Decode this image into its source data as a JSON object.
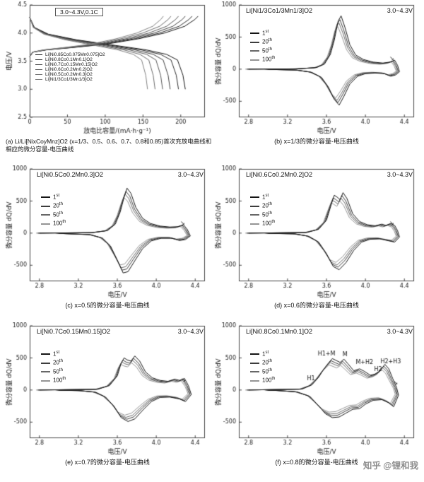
{
  "watermark": "知乎 @锂和我",
  "chart_data": [
    {
      "id": "a",
      "type": "line",
      "annotation_box": "3.0~4.3V,0.1C",
      "caption": "(a) Li/Li[NixCoyMnz]O2 (x=1/3、0.5、0.6、0.7、0.8和0.85)首次充放电曲线和相应的微分容量-电压曲线",
      "xlabel": "放电比容量/(mA·h·g⁻¹)",
      "ylabel": "电压/V",
      "xlim": [
        0,
        232
      ],
      "ylim": [
        2.5,
        4.5
      ],
      "xticks": [
        "0",
        "50",
        "100",
        "150",
        "200"
      ],
      "yticks": [
        "2.5",
        "3.0",
        "3.5",
        "4.0",
        "4.5"
      ],
      "legend_position": "inside-left",
      "grid": false,
      "charge_shape": [
        [
          0,
          3.58
        ],
        [
          0.02,
          3.66
        ],
        [
          0.1,
          3.7
        ],
        [
          0.25,
          3.74
        ],
        [
          0.45,
          3.8
        ],
        [
          0.65,
          3.9
        ],
        [
          0.8,
          4.0
        ],
        [
          0.92,
          4.12
        ],
        [
          0.98,
          4.24
        ],
        [
          1,
          4.3
        ]
      ],
      "discharge_shape": [
        [
          0,
          4.28
        ],
        [
          0.03,
          4.1
        ],
        [
          0.12,
          3.98
        ],
        [
          0.3,
          3.88
        ],
        [
          0.55,
          3.78
        ],
        [
          0.75,
          3.7
        ],
        [
          0.88,
          3.62
        ],
        [
          0.95,
          3.52
        ],
        [
          0.985,
          3.25
        ],
        [
          1,
          3.0
        ]
      ],
      "series": [
        {
          "name": "Li[Ni0.85Co0.075Mn0.075]O2",
          "charge_capacity": 223,
          "discharge_capacity": 206,
          "color": "#141414"
        },
        {
          "name": "Li[Ni0.8Co0.1Mn0.1]O2",
          "charge_capacity": 215,
          "discharge_capacity": 197,
          "color": "#2a2a2a"
        },
        {
          "name": "Li[Ni0.7Co0.15Mn0.15]O2",
          "charge_capacity": 206,
          "discharge_capacity": 186,
          "color": "#3f3f3f"
        },
        {
          "name": "Li[Ni0.6Co0.2Mn0.2]O2",
          "charge_capacity": 197,
          "discharge_capacity": 176,
          "color": "#555555"
        },
        {
          "name": "Li[Ni0.5Co0.2Mn0.3]O2",
          "charge_capacity": 187,
          "discharge_capacity": 166,
          "color": "#6a6a6a"
        },
        {
          "name": "Li[Ni1/3Co1/3Mn1/3]O2",
          "charge_capacity": 177,
          "discharge_capacity": 156,
          "color": "#808080"
        }
      ],
      "annotations": []
    },
    {
      "id": "b",
      "type": "line",
      "title": "Li[Ni1/3Co1/3Mn1/3]O2",
      "range_label": "3.0~4.3V",
      "caption": "(b) x=1/3的微分容量-电压曲线",
      "xlabel": "电压/V",
      "ylabel": "微分容量 dQ/dV",
      "xlim": [
        2.7,
        4.5
      ],
      "ylim": [
        -750,
        1000
      ],
      "xticks": [
        "2.8",
        "3.2",
        "3.6",
        "4.0",
        "4.4"
      ],
      "yticks": [
        "-500",
        "0",
        "500",
        "1000"
      ],
      "grid": false,
      "loop": [
        [
          2.8,
          0
        ],
        [
          3.3,
          5
        ],
        [
          3.5,
          25
        ],
        [
          3.58,
          80
        ],
        [
          3.64,
          230
        ],
        [
          3.68,
          450
        ],
        [
          3.72,
          750
        ],
        [
          3.75,
          830
        ],
        [
          3.79,
          650
        ],
        [
          3.84,
          380
        ],
        [
          3.9,
          220
        ],
        [
          3.98,
          150
        ],
        [
          4.08,
          110
        ],
        [
          4.18,
          95
        ],
        [
          4.25,
          110
        ],
        [
          4.3,
          140
        ],
        [
          4.33,
          60
        ],
        [
          4.35,
          -40
        ],
        [
          4.31,
          -90
        ],
        [
          4.26,
          -110
        ],
        [
          4.2,
          -70
        ],
        [
          4.1,
          -60
        ],
        [
          4.0,
          -70
        ],
        [
          3.92,
          -110
        ],
        [
          3.84,
          -230
        ],
        [
          3.78,
          -420
        ],
        [
          3.73,
          -560
        ],
        [
          3.68,
          -470
        ],
        [
          3.62,
          -280
        ],
        [
          3.55,
          -130
        ],
        [
          3.45,
          -50
        ],
        [
          3.3,
          -15
        ],
        [
          3.0,
          -4
        ]
      ],
      "cycles": [
        {
          "num": "1",
          "sup": "st",
          "scale": 1.0,
          "shift": 0,
          "color": "#141414"
        },
        {
          "num": "20",
          "sup": "th",
          "scale": 0.93,
          "shift": -0.012,
          "color": "#3c3c3c"
        },
        {
          "num": "50",
          "sup": "th",
          "scale": 0.87,
          "shift": -0.022,
          "color": "#676767"
        },
        {
          "num": "100",
          "sup": "th",
          "scale": 0.8,
          "shift": -0.034,
          "color": "#949494"
        }
      ],
      "annotations": [
        {
          "text": "↘",
          "v": 4.27,
          "y": 160
        }
      ]
    },
    {
      "id": "c",
      "type": "line",
      "title": "Li[Ni0.5Co0.2Mn0.3]O2",
      "range_label": "3.0~4.3V",
      "caption": "(c) x=0.5的微分容量-电压曲线",
      "xlabel": "电压/V",
      "ylabel": "微分容量 dQ/dV",
      "xlim": [
        2.7,
        4.5
      ],
      "ylim": [
        -750,
        1000
      ],
      "xticks": [
        "2.8",
        "3.2",
        "3.6",
        "4.0",
        "4.4"
      ],
      "yticks": [
        "-500",
        "0",
        "500",
        "1000"
      ],
      "grid": false,
      "loop": [
        [
          2.8,
          0
        ],
        [
          3.35,
          8
        ],
        [
          3.5,
          40
        ],
        [
          3.58,
          140
        ],
        [
          3.63,
          330
        ],
        [
          3.67,
          560
        ],
        [
          3.7,
          700
        ],
        [
          3.74,
          620
        ],
        [
          3.79,
          400
        ],
        [
          3.86,
          230
        ],
        [
          3.94,
          150
        ],
        [
          4.04,
          110
        ],
        [
          4.14,
          95
        ],
        [
          4.22,
          100
        ],
        [
          4.28,
          130
        ],
        [
          4.32,
          55
        ],
        [
          4.35,
          -45
        ],
        [
          4.3,
          -100
        ],
        [
          4.24,
          -115
        ],
        [
          4.16,
          -80
        ],
        [
          4.05,
          -80
        ],
        [
          3.95,
          -120
        ],
        [
          3.86,
          -240
        ],
        [
          3.78,
          -430
        ],
        [
          3.71,
          -600
        ],
        [
          3.66,
          -620
        ],
        [
          3.6,
          -420
        ],
        [
          3.53,
          -200
        ],
        [
          3.45,
          -80
        ],
        [
          3.33,
          -25
        ],
        [
          3.0,
          -4
        ]
      ],
      "cycles": [
        {
          "num": "1",
          "sup": "st",
          "scale": 1.0,
          "shift": 0,
          "color": "#141414"
        },
        {
          "num": "20",
          "sup": "th",
          "scale": 0.93,
          "shift": -0.012,
          "color": "#3c3c3c"
        },
        {
          "num": "50",
          "sup": "th",
          "scale": 0.87,
          "shift": -0.022,
          "color": "#676767"
        },
        {
          "num": "100",
          "sup": "th",
          "scale": 0.8,
          "shift": -0.034,
          "color": "#949494"
        }
      ],
      "annotations": [
        {
          "text": "↘",
          "v": 4.27,
          "y": 150
        }
      ]
    },
    {
      "id": "d",
      "type": "line",
      "title": "Li[Ni0.6Co0.2Mn0.2]O2",
      "range_label": "3.0~4.3V",
      "caption": "(d) x=0.6的微分容量-电压曲线",
      "xlabel": "电压/V",
      "ylabel": "微分容量 dQ/dV",
      "xlim": [
        2.7,
        4.5
      ],
      "ylim": [
        -750,
        1000
      ],
      "xticks": [
        "2.8",
        "3.2",
        "3.6",
        "4.0",
        "4.4"
      ],
      "yticks": [
        "-500",
        "0",
        "500",
        "1000"
      ],
      "grid": false,
      "loop": [
        [
          2.8,
          0
        ],
        [
          3.4,
          10
        ],
        [
          3.52,
          60
        ],
        [
          3.6,
          200
        ],
        [
          3.65,
          450
        ],
        [
          3.68,
          590
        ],
        [
          3.71,
          560
        ],
        [
          3.74,
          520
        ],
        [
          3.77,
          630
        ],
        [
          3.81,
          540
        ],
        [
          3.87,
          300
        ],
        [
          3.94,
          180
        ],
        [
          4.02,
          130
        ],
        [
          4.1,
          115
        ],
        [
          4.17,
          140
        ],
        [
          4.21,
          120
        ],
        [
          4.26,
          150
        ],
        [
          4.3,
          120
        ],
        [
          4.33,
          40
        ],
        [
          4.35,
          -60
        ],
        [
          4.3,
          -140
        ],
        [
          4.24,
          -120
        ],
        [
          4.15,
          -90
        ],
        [
          4.05,
          -95
        ],
        [
          3.96,
          -140
        ],
        [
          3.88,
          -270
        ],
        [
          3.8,
          -460
        ],
        [
          3.73,
          -570
        ],
        [
          3.67,
          -520
        ],
        [
          3.6,
          -320
        ],
        [
          3.52,
          -140
        ],
        [
          3.42,
          -50
        ],
        [
          3.28,
          -12
        ],
        [
          3.0,
          -4
        ]
      ],
      "cycles": [
        {
          "num": "1",
          "sup": "st",
          "scale": 1.0,
          "shift": 0,
          "color": "#141414"
        },
        {
          "num": "20",
          "sup": "th",
          "scale": 0.93,
          "shift": -0.012,
          "color": "#3c3c3c"
        },
        {
          "num": "50",
          "sup": "th",
          "scale": 0.87,
          "shift": -0.022,
          "color": "#676767"
        },
        {
          "num": "100",
          "sup": "th",
          "scale": 0.8,
          "shift": -0.034,
          "color": "#949494"
        }
      ],
      "annotations": [
        {
          "text": "↘",
          "v": 4.27,
          "y": 150
        }
      ]
    },
    {
      "id": "e",
      "type": "line",
      "title": "Li[Ni0.7Co0.15Mn0.15]O2",
      "range_label": "3.0~4.3V",
      "caption": "(e) x=0.7的微分容量-电压曲线",
      "xlabel": "电压/V",
      "ylabel": "微分容量 dQ/dV",
      "xlim": [
        2.7,
        4.5
      ],
      "ylim": [
        -750,
        1000
      ],
      "xticks": [
        "2.8",
        "3.2",
        "3.6",
        "4.0",
        "4.4"
      ],
      "yticks": [
        "-500",
        "0",
        "500",
        "1000"
      ],
      "grid": false,
      "loop": [
        [
          2.8,
          0
        ],
        [
          3.4,
          12
        ],
        [
          3.52,
          70
        ],
        [
          3.6,
          220
        ],
        [
          3.64,
          420
        ],
        [
          3.67,
          500
        ],
        [
          3.7,
          470
        ],
        [
          3.74,
          450
        ],
        [
          3.78,
          530
        ],
        [
          3.83,
          450
        ],
        [
          3.89,
          280
        ],
        [
          3.96,
          190
        ],
        [
          4.04,
          150
        ],
        [
          4.12,
          135
        ],
        [
          4.19,
          170
        ],
        [
          4.24,
          150
        ],
        [
          4.29,
          180
        ],
        [
          4.33,
          70
        ],
        [
          4.36,
          -70
        ],
        [
          4.3,
          -180
        ],
        [
          4.24,
          -140
        ],
        [
          4.14,
          -110
        ],
        [
          4.04,
          -115
        ],
        [
          3.95,
          -180
        ],
        [
          3.87,
          -300
        ],
        [
          3.78,
          -450
        ],
        [
          3.71,
          -490
        ],
        [
          3.64,
          -430
        ],
        [
          3.57,
          -260
        ],
        [
          3.48,
          -110
        ],
        [
          3.38,
          -35
        ],
        [
          3.22,
          -10
        ],
        [
          3.0,
          -4
        ]
      ],
      "cycles": [
        {
          "num": "1",
          "sup": "st",
          "scale": 1.0,
          "shift": 0,
          "color": "#141414"
        },
        {
          "num": "20",
          "sup": "th",
          "scale": 0.93,
          "shift": -0.012,
          "color": "#3c3c3c"
        },
        {
          "num": "50",
          "sup": "th",
          "scale": 0.87,
          "shift": -0.022,
          "color": "#676767"
        },
        {
          "num": "100",
          "sup": "th",
          "scale": 0.8,
          "shift": -0.034,
          "color": "#949494"
        }
      ],
      "annotations": [
        {
          "text": "↘",
          "v": 4.28,
          "y": 150
        }
      ]
    },
    {
      "id": "f",
      "type": "line",
      "title": "Li[Ni0.8Co0.1Mn0.1]O2",
      "range_label": "3.0~4.3V",
      "caption": "(f) x=0.8的微分容量-电压曲线",
      "xlabel": "电压/V",
      "ylabel": "微分容量 dQ/dV",
      "xlim": [
        2.7,
        4.5
      ],
      "ylim": [
        -750,
        1000
      ],
      "xticks": [
        "2.8",
        "3.2",
        "3.6",
        "4.0",
        "4.4"
      ],
      "yticks": [
        "-500",
        "0",
        "500",
        "1000"
      ],
      "grid": false,
      "loop": [
        [
          2.8,
          0
        ],
        [
          3.35,
          15
        ],
        [
          3.45,
          80
        ],
        [
          3.52,
          200
        ],
        [
          3.57,
          320
        ],
        [
          3.62,
          420
        ],
        [
          3.66,
          490
        ],
        [
          3.7,
          460
        ],
        [
          3.74,
          430
        ],
        [
          3.78,
          480
        ],
        [
          3.82,
          410
        ],
        [
          3.88,
          300
        ],
        [
          3.94,
          330
        ],
        [
          3.99,
          290
        ],
        [
          4.05,
          230
        ],
        [
          4.1,
          250
        ],
        [
          4.15,
          300
        ],
        [
          4.2,
          400
        ],
        [
          4.24,
          330
        ],
        [
          4.28,
          180
        ],
        [
          4.32,
          40
        ],
        [
          4.34,
          -80
        ],
        [
          4.29,
          -260
        ],
        [
          4.24,
          -200
        ],
        [
          4.17,
          -150
        ],
        [
          4.08,
          -160
        ],
        [
          4.0,
          -220
        ],
        [
          3.94,
          -290
        ],
        [
          3.87,
          -300
        ],
        [
          3.8,
          -360
        ],
        [
          3.73,
          -420
        ],
        [
          3.66,
          -430
        ],
        [
          3.59,
          -370
        ],
        [
          3.51,
          -230
        ],
        [
          3.43,
          -100
        ],
        [
          3.3,
          -30
        ],
        [
          3.1,
          -8
        ],
        [
          3.0,
          -4
        ]
      ],
      "cycles": [
        {
          "num": "1",
          "sup": "st",
          "scale": 1.0,
          "shift": 0,
          "color": "#141414"
        },
        {
          "num": "20",
          "sup": "th",
          "scale": 0.93,
          "shift": -0.012,
          "color": "#3c3c3c"
        },
        {
          "num": "50",
          "sup": "th",
          "scale": 0.87,
          "shift": -0.022,
          "color": "#676767"
        },
        {
          "num": "100",
          "sup": "th",
          "scale": 0.8,
          "shift": -0.034,
          "color": "#949494"
        }
      ],
      "annotations": [
        {
          "text": "H1",
          "v": 3.44,
          "y": 170
        },
        {
          "text": "H1+M",
          "v": 3.6,
          "y": 560
        },
        {
          "text": "M",
          "v": 3.79,
          "y": 545
        },
        {
          "text": "M+H2",
          "v": 3.99,
          "y": 430
        },
        {
          "text": "H2",
          "v": 4.13,
          "y": 320
        },
        {
          "text": "H2+H3",
          "v": 4.26,
          "y": 440
        },
        {
          "text": "↘",
          "v": 4.31,
          "y": 110
        }
      ]
    }
  ]
}
